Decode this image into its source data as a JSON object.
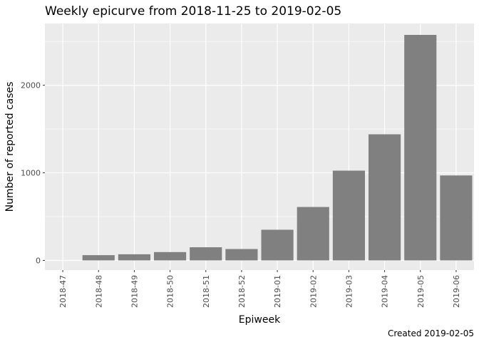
{
  "chart_data": {
    "type": "bar",
    "title": "Weekly epicurve from 2018-11-25 to 2019-02-05",
    "xlabel": "Epiweek",
    "ylabel": "Number of reported cases",
    "caption": "Created 2019-02-05",
    "categories": [
      "2018-47",
      "2018-48",
      "2018-49",
      "2018-50",
      "2018-51",
      "2018-52",
      "2019-01",
      "2019-02",
      "2019-03",
      "2019-04",
      "2019-05",
      "2019-06"
    ],
    "values": [
      0,
      60,
      70,
      95,
      150,
      130,
      350,
      610,
      1025,
      1440,
      2575,
      970
    ],
    "ylim": [
      -110,
      2705
    ],
    "yticks": [
      0,
      1000,
      2000
    ],
    "ytick_labels": [
      "0",
      "1000",
      "2000"
    ],
    "grid": true,
    "legend": "none",
    "colors": {
      "bar": "#808080",
      "panel_background": "#ebebeb",
      "grid_major": "#ffffff",
      "tick_text": "#4d4d4d",
      "tick_mark": "#333333"
    }
  }
}
